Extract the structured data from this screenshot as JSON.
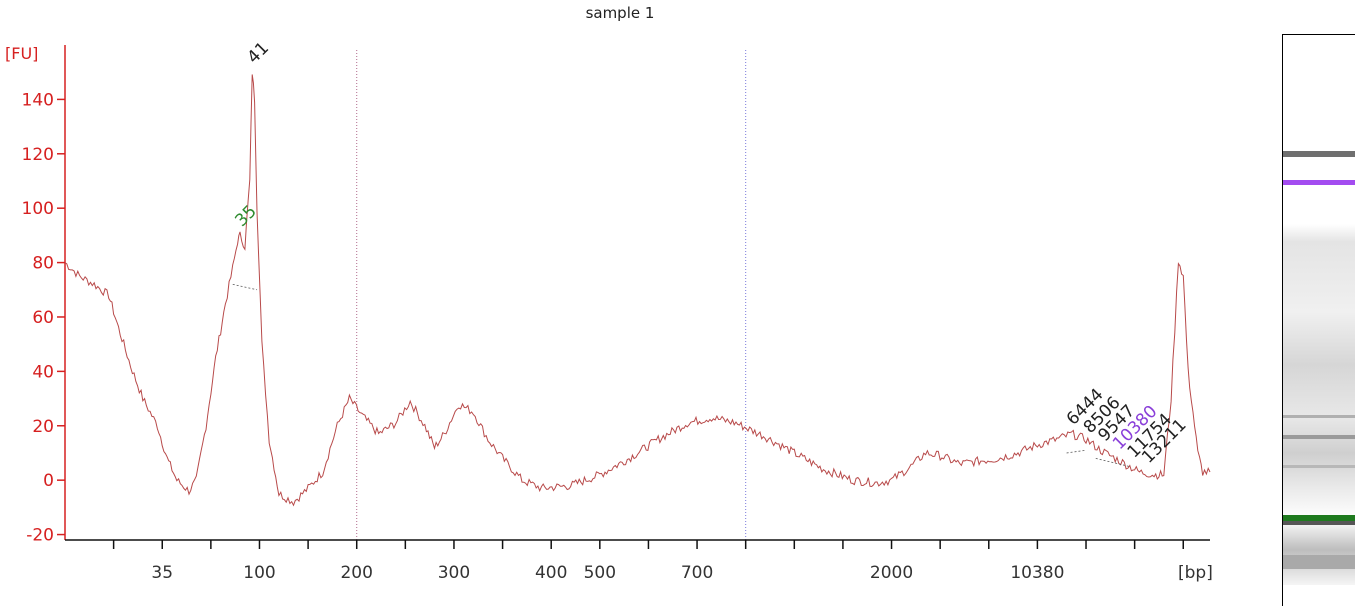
{
  "chart_data": {
    "type": "line",
    "title": "sample 1",
    "ylabel": "[FU]",
    "xlabel": "[bp]",
    "ylim": [
      -22,
      160
    ],
    "yticks": [
      -20,
      0,
      20,
      40,
      60,
      80,
      100,
      120,
      140
    ],
    "xtick_labels": [
      {
        "label": "35",
        "slot": 2
      },
      {
        "label": "100",
        "slot": 4
      },
      {
        "label": "200",
        "slot": 6
      },
      {
        "label": "300",
        "slot": 8
      },
      {
        "label": "400",
        "slot": 10
      },
      {
        "label": "500",
        "slot": 11
      },
      {
        "label": "700",
        "slot": 13
      },
      {
        "label": "2000",
        "slot": 17
      },
      {
        "label": "10380",
        "slot": 20
      }
    ],
    "xtick_slots": 23,
    "xrange_slots": [
      0,
      23.55
    ],
    "dotted_lines_slot": [
      6,
      14
    ],
    "series": [
      {
        "color": "#b84a4a",
        "points": [
          [
            0.0,
            80
          ],
          [
            0.3,
            75
          ],
          [
            0.6,
            72
          ],
          [
            0.9,
            68
          ],
          [
            1.1,
            56
          ],
          [
            1.35,
            42
          ],
          [
            1.6,
            30
          ],
          [
            1.9,
            20
          ],
          [
            2.1,
            8
          ],
          [
            2.3,
            0
          ],
          [
            2.55,
            -4
          ],
          [
            2.7,
            0
          ],
          [
            2.9,
            20
          ],
          [
            3.1,
            45
          ],
          [
            3.3,
            65
          ],
          [
            3.45,
            78
          ],
          [
            3.55,
            88
          ],
          [
            3.6,
            90
          ],
          [
            3.7,
            86
          ],
          [
            3.8,
            110
          ],
          [
            3.85,
            150
          ],
          [
            3.9,
            140
          ],
          [
            3.95,
            100
          ],
          [
            4.05,
            50
          ],
          [
            4.2,
            15
          ],
          [
            4.4,
            -5
          ],
          [
            4.7,
            -8
          ],
          [
            5.0,
            -3
          ],
          [
            5.3,
            3
          ],
          [
            5.6,
            20
          ],
          [
            5.85,
            30
          ],
          [
            6.1,
            24
          ],
          [
            6.45,
            17
          ],
          [
            6.8,
            21
          ],
          [
            7.1,
            29
          ],
          [
            7.4,
            20
          ],
          [
            7.6,
            12
          ],
          [
            7.8,
            17
          ],
          [
            8.1,
            28
          ],
          [
            8.4,
            25
          ],
          [
            8.7,
            15
          ],
          [
            9.0,
            8
          ],
          [
            9.4,
            0
          ],
          [
            9.8,
            -3
          ],
          [
            10.4,
            -2
          ],
          [
            11.0,
            2
          ],
          [
            11.6,
            8
          ],
          [
            12.2,
            15
          ],
          [
            12.8,
            21
          ],
          [
            13.3,
            23
          ],
          [
            13.8,
            21
          ],
          [
            14.4,
            16
          ],
          [
            15.0,
            10
          ],
          [
            15.6,
            4
          ],
          [
            16.2,
            0
          ],
          [
            16.7,
            -1
          ],
          [
            17.0,
            0
          ],
          [
            17.4,
            5
          ],
          [
            17.7,
            10
          ],
          [
            18.0,
            9
          ],
          [
            18.4,
            6
          ],
          [
            18.8,
            7
          ],
          [
            19.2,
            8
          ],
          [
            19.6,
            10
          ],
          [
            20.0,
            13
          ],
          [
            20.4,
            15
          ],
          [
            20.7,
            17
          ],
          [
            21.0,
            15
          ],
          [
            21.3,
            11
          ],
          [
            21.6,
            8
          ],
          [
            21.9,
            5
          ],
          [
            22.1,
            3
          ],
          [
            22.4,
            2
          ],
          [
            22.6,
            2
          ],
          [
            22.75,
            30
          ],
          [
            22.9,
            81
          ],
          [
            23.0,
            75
          ],
          [
            23.1,
            40
          ],
          [
            23.2,
            25
          ],
          [
            23.3,
            10
          ],
          [
            23.4,
            3
          ],
          [
            23.55,
            3
          ]
        ]
      }
    ],
    "annotations": [
      {
        "text": "41",
        "slot": 3.85,
        "y": 150,
        "color": "#222222"
      },
      {
        "text": "35",
        "slot": 3.6,
        "y": 90,
        "color": "#2e8b2e"
      },
      {
        "text": "6444",
        "slot": 20.7,
        "y": 17,
        "color": "#222222"
      },
      {
        "text": "8506",
        "slot": 21.05,
        "y": 14,
        "color": "#222222"
      },
      {
        "text": "9547",
        "slot": 21.35,
        "y": 11,
        "color": "#222222"
      },
      {
        "text": "10380",
        "slot": 21.65,
        "y": 8,
        "color": "#8a3fd9"
      },
      {
        "text": "11754",
        "slot": 21.95,
        "y": 5,
        "color": "#222222"
      },
      {
        "text": "13211",
        "slot": 22.25,
        "y": 3,
        "color": "#222222"
      }
    ]
  }
}
